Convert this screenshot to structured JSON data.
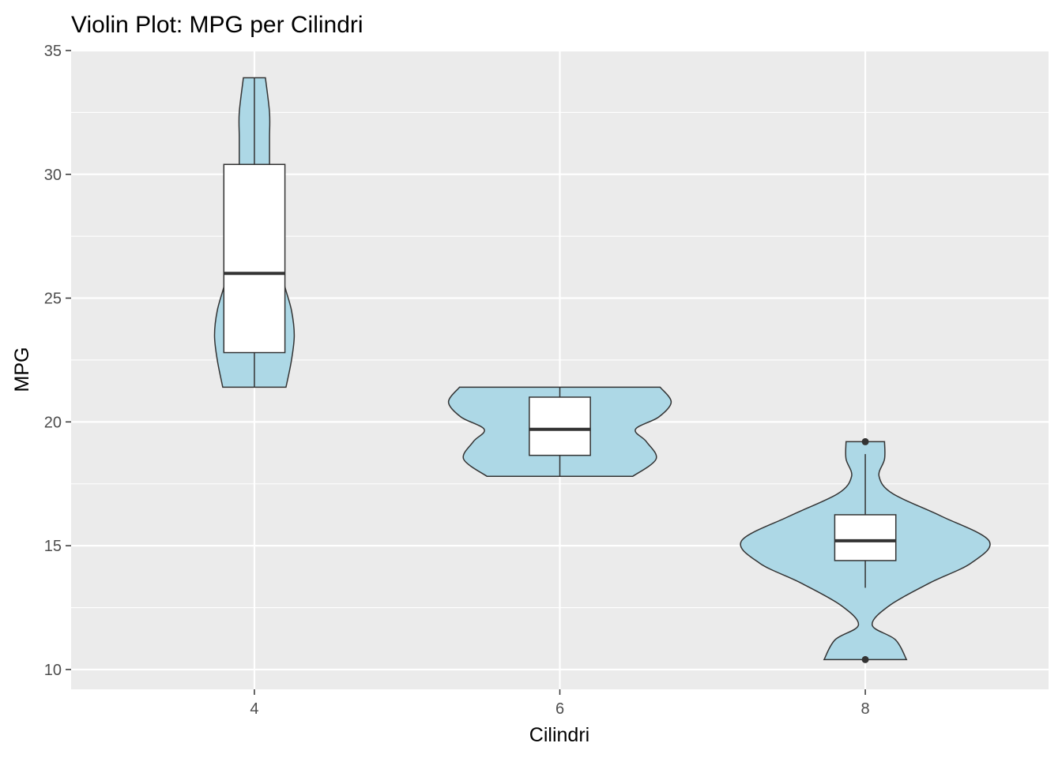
{
  "chart_data": {
    "type": "violin",
    "title": "Violin Plot: MPG per Cilindri",
    "xlabel": "Cilindri",
    "ylabel": "MPG",
    "categories": [
      "4",
      "6",
      "8"
    ],
    "ylim": [
      9.2,
      35
    ],
    "yticks": [
      10,
      15,
      20,
      25,
      30,
      35
    ],
    "grid": true,
    "legend": "none",
    "colors": {
      "panel": "#ebebeb",
      "grid": "#ffffff",
      "violin_fill": "#add8e6",
      "violin_stroke": "#333333",
      "box_fill": "#ffffff",
      "box_stroke": "#333333"
    },
    "series": [
      {
        "category": "4",
        "box": {
          "min": 21.4,
          "q1": 22.8,
          "median": 26.0,
          "q3": 30.4,
          "max": 33.9,
          "outliers": []
        },
        "density": {
          "y": [
            21.4,
            22.5,
            23.5,
            24.5,
            25.5,
            26.5,
            27.5,
            28.5,
            29.5,
            30.5,
            31.5,
            32.5,
            33.9
          ],
          "width": [
            0.23,
            0.27,
            0.29,
            0.27,
            0.22,
            0.18,
            0.15,
            0.12,
            0.11,
            0.11,
            0.11,
            0.11,
            0.08
          ]
        }
      },
      {
        "category": "6",
        "box": {
          "min": 17.8,
          "q1": 18.65,
          "median": 19.7,
          "q3": 21.0,
          "max": 21.4,
          "outliers": []
        },
        "density": {
          "y": [
            17.8,
            18.5,
            19.2,
            19.7,
            20.2,
            20.8,
            21.4
          ],
          "width": [
            0.53,
            0.7,
            0.63,
            0.55,
            0.72,
            0.81,
            0.73
          ]
        }
      },
      {
        "category": "8",
        "box": {
          "min": 13.3,
          "q1": 14.4,
          "median": 15.2,
          "q3": 16.25,
          "max": 18.7,
          "outliers": [
            10.4,
            19.2
          ]
        },
        "density": {
          "y": [
            10.4,
            11.2,
            11.8,
            12.6,
            13.5,
            14.3,
            15.2,
            16.2,
            17.1,
            17.8,
            18.5,
            19.2
          ],
          "width": [
            0.3,
            0.22,
            0.05,
            0.18,
            0.47,
            0.77,
            0.9,
            0.55,
            0.2,
            0.1,
            0.14,
            0.14
          ]
        }
      }
    ]
  }
}
